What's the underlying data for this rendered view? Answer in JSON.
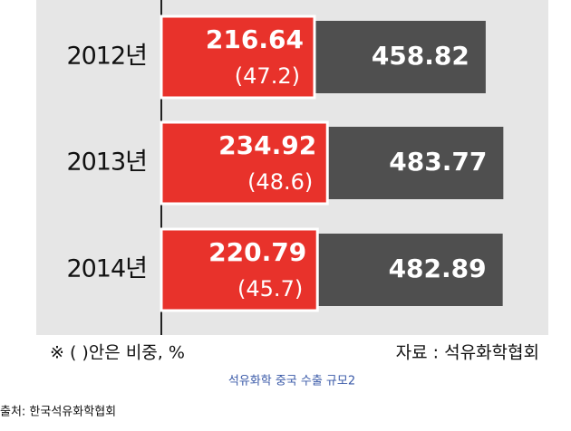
{
  "chart_data": {
    "type": "bar",
    "categories": [
      "2012년",
      "2013년",
      "2014년"
    ],
    "series": [
      {
        "color": "#e8322b",
        "values": [
          216.64,
          234.92,
          220.79
        ]
      },
      {
        "color": "#4f4f4f",
        "values": [
          458.82,
          483.77,
          482.89
        ]
      }
    ],
    "shares": {
      "values": [
        47.2,
        48.6,
        45.7
      ],
      "value_labels": [
        "(47.2)",
        "(48.6)",
        "(45.7)"
      ]
    },
    "note": "※ (    )안은 비중, %",
    "source": "자료 : 석유화학협회",
    "caption": "석유화학 중국 수출 규모2",
    "credit": "출처: 한국석유화학협회"
  }
}
